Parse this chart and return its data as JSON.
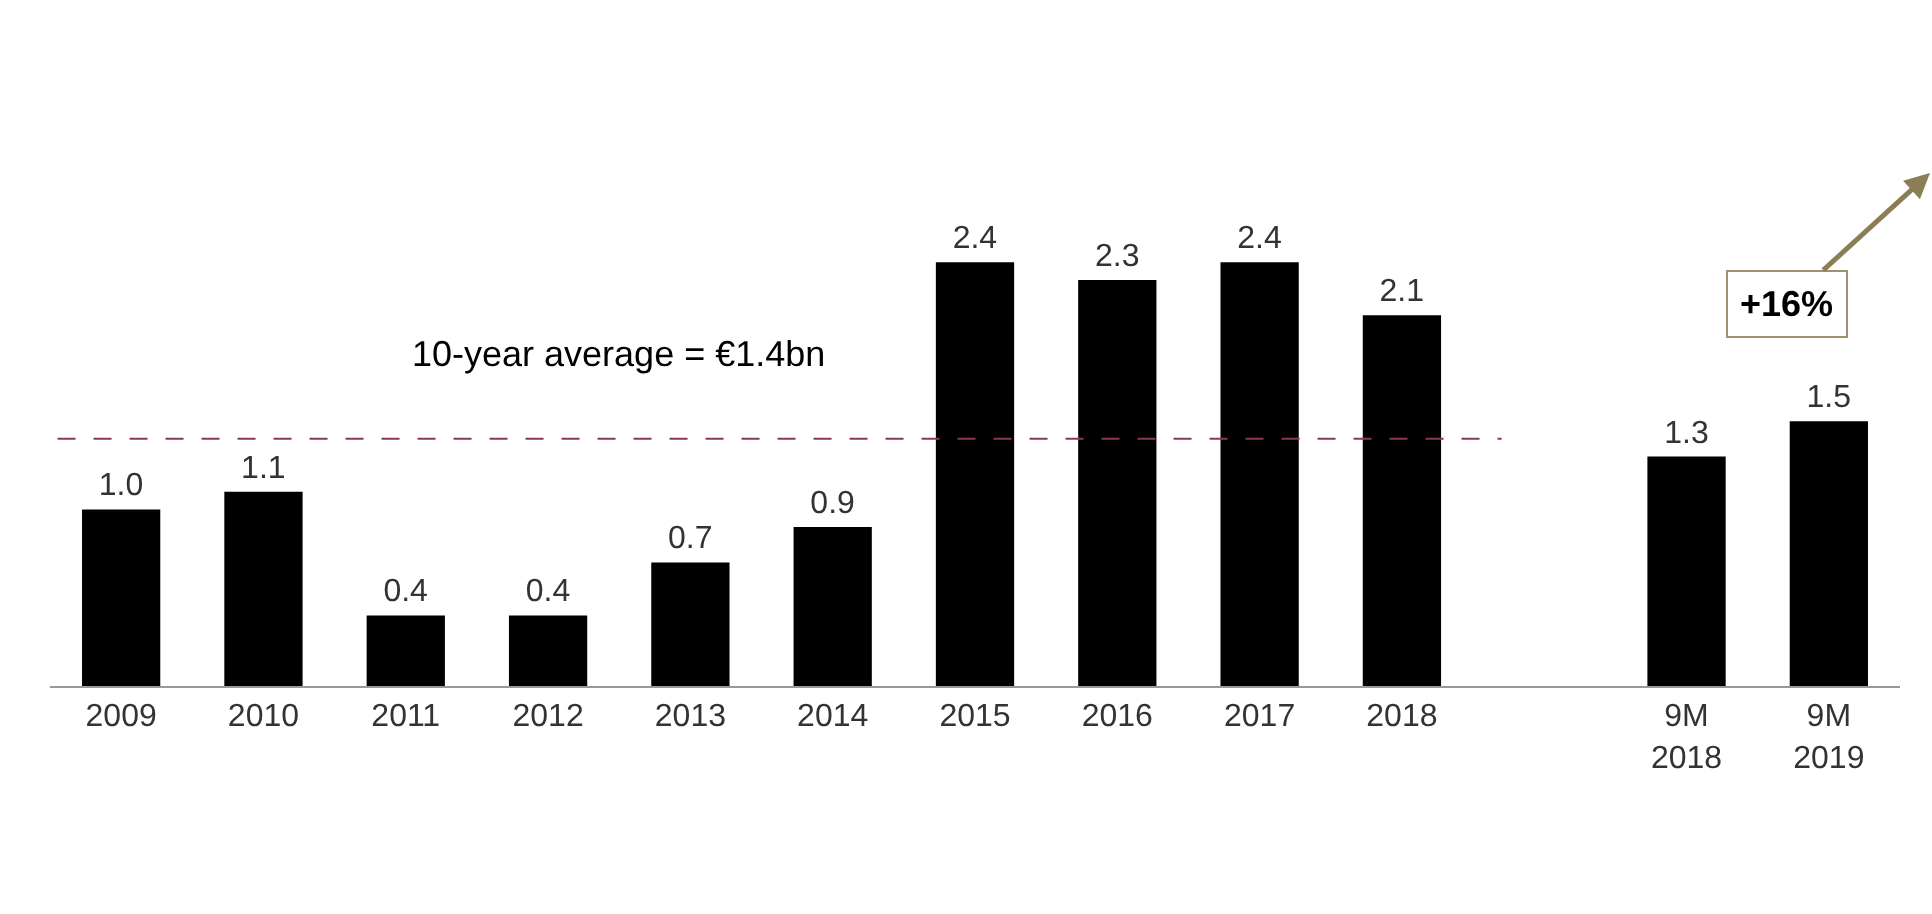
{
  "chart_data": {
    "type": "bar",
    "categories": [
      "2009",
      "2010",
      "2011",
      "2012",
      "2013",
      "2014",
      "2015",
      "2016",
      "2017",
      "2018",
      null,
      "9M 2018",
      "9M 2019"
    ],
    "values": [
      1.0,
      1.1,
      0.4,
      0.4,
      0.7,
      0.9,
      2.4,
      2.3,
      2.4,
      2.1,
      null,
      1.3,
      1.5
    ],
    "value_labels": [
      "1.0",
      "1.1",
      "0.4",
      "0.4",
      "0.7",
      "0.9",
      "2.4",
      "2.3",
      "2.4",
      "2.1",
      null,
      "1.3",
      "1.5"
    ],
    "color": "#000000",
    "tick_labels": "x",
    "grid": false,
    "ref_lines": [
      {
        "axis": "y",
        "value": 1.4,
        "label": "10-year average = €1.4bn",
        "color": "#8b3a4a",
        "line_style": "dashed"
      }
    ],
    "annotations": [
      "+16%"
    ]
  }
}
